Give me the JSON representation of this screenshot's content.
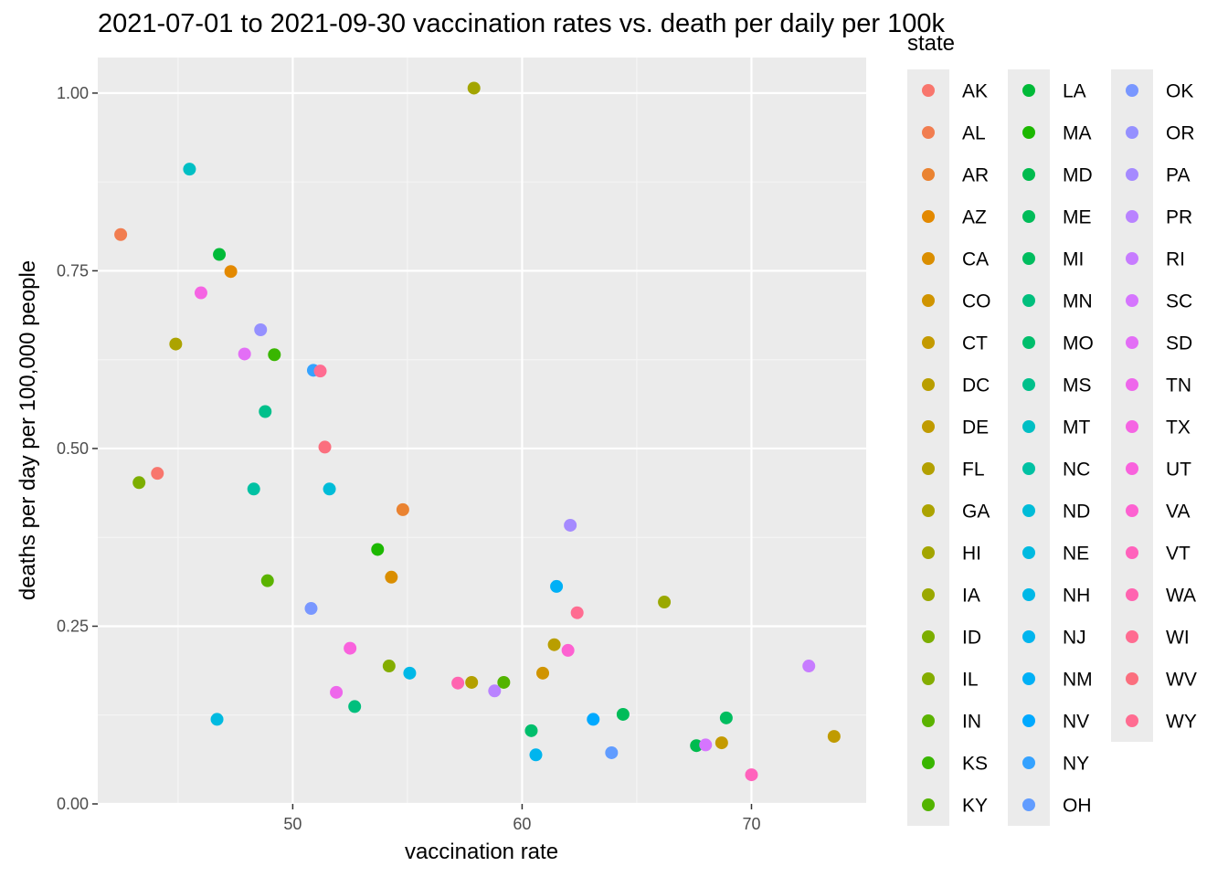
{
  "chart_data": {
    "type": "scatter",
    "title": "2021-07-01 to 2021-09-30 vaccination rates vs. death per daily per 100k",
    "xlabel": "vaccination rate",
    "ylabel": "deaths per day per 100,000 people",
    "legend_title": "state",
    "legend_position": "right",
    "grid": true,
    "xlim": [
      41.5,
      75
    ],
    "ylim": [
      0,
      1.05
    ],
    "x_ticks": [
      50,
      60,
      70
    ],
    "y_ticks": [
      "0.00",
      "0.25",
      "0.50",
      "0.75",
      "1.00"
    ],
    "legend_columns": 3,
    "points": [
      {
        "state": "AK",
        "x": 44.1,
        "y": 0.465,
        "color": "#F8766D"
      },
      {
        "state": "AL",
        "x": 42.5,
        "y": 0.801,
        "color": "#F17D50"
      },
      {
        "state": "AR",
        "x": 54.8,
        "y": 0.414,
        "color": "#EA8331"
      },
      {
        "state": "AZ",
        "x": 47.3,
        "y": 0.749,
        "color": "#E38900"
      },
      {
        "state": "CA",
        "x": 54.3,
        "y": 0.319,
        "color": "#DA8E00"
      },
      {
        "state": "CO",
        "x": 60.9,
        "y": 0.184,
        "color": "#D09400"
      },
      {
        "state": "CT",
        "x": 68.7,
        "y": 0.086,
        "color": "#C49A00"
      },
      {
        "state": "DC",
        "x": 61.4,
        "y": 0.224,
        "color": "#B99E00"
      },
      {
        "state": "DE",
        "x": 73.6,
        "y": 0.095,
        "color": "#C09B00"
      },
      {
        "state": "FL",
        "x": 57.8,
        "y": 0.171,
        "color": "#B3A000"
      },
      {
        "state": "GA",
        "x": 44.9,
        "y": 0.647,
        "color": "#ACA300"
      },
      {
        "state": "HI",
        "x": 57.9,
        "y": 1.007,
        "color": "#A3A500"
      },
      {
        "state": "IA",
        "x": 66.2,
        "y": 0.284,
        "color": "#9AA800"
      },
      {
        "state": "ID",
        "x": 43.3,
        "y": 0.452,
        "color": "#7CAE00"
      },
      {
        "state": "IL",
        "x": 54.2,
        "y": 0.194,
        "color": "#84AD00"
      },
      {
        "state": "IN",
        "x": 48.9,
        "y": 0.314,
        "color": "#5BB300"
      },
      {
        "state": "KS",
        "x": 49.2,
        "y": 0.632,
        "color": "#39B600"
      },
      {
        "state": "KY",
        "x": 59.2,
        "y": 0.171,
        "color": "#53B400"
      },
      {
        "state": "LA",
        "x": 46.8,
        "y": 0.773,
        "color": "#00BA38"
      },
      {
        "state": "MA",
        "x": 53.7,
        "y": 0.358,
        "color": "#1CB800"
      },
      {
        "state": "MD",
        "x": 67.6,
        "y": 0.082,
        "color": "#00BB4E"
      },
      {
        "state": "ME",
        "x": 64.4,
        "y": 0.126,
        "color": "#00BC59"
      },
      {
        "state": "MI",
        "x": 68.9,
        "y": 0.121,
        "color": "#00BD5F"
      },
      {
        "state": "MN",
        "x": 52.7,
        "y": 0.137,
        "color": "#00BF7D"
      },
      {
        "state": "MO",
        "x": 60.4,
        "y": 0.103,
        "color": "#00BE6C"
      },
      {
        "state": "MS",
        "x": 48.8,
        "y": 0.552,
        "color": "#00C08B"
      },
      {
        "state": "MT",
        "x": 45.5,
        "y": 0.893,
        "color": "#00BFC4"
      },
      {
        "state": "NC",
        "x": 48.3,
        "y": 0.443,
        "color": "#00C1A3"
      },
      {
        "state": "ND",
        "x": 51.6,
        "y": 0.443,
        "color": "#00BCD8"
      },
      {
        "state": "NE",
        "x": 46.7,
        "y": 0.119,
        "color": "#00BAE0"
      },
      {
        "state": "NH",
        "x": 55.1,
        "y": 0.184,
        "color": "#00B8E7"
      },
      {
        "state": "NJ",
        "x": 60.6,
        "y": 0.069,
        "color": "#00B5EE"
      },
      {
        "state": "NM",
        "x": 61.5,
        "y": 0.306,
        "color": "#00B0F6"
      },
      {
        "state": "NV",
        "x": 63.1,
        "y": 0.119,
        "color": "#00A9FF"
      },
      {
        "state": "NY",
        "x": 50.9,
        "y": 0.61,
        "color": "#35A2FF"
      },
      {
        "state": "OH",
        "x": 63.9,
        "y": 0.072,
        "color": "#619CFF"
      },
      {
        "state": "OK",
        "x": 50.8,
        "y": 0.275,
        "color": "#7997FF"
      },
      {
        "state": "OR",
        "x": 48.6,
        "y": 0.667,
        "color": "#9590FF"
      },
      {
        "state": "PA",
        "x": 62.1,
        "y": 0.392,
        "color": "#A58AFF"
      },
      {
        "state": "PR",
        "x": 58.8,
        "y": 0.159,
        "color": "#B983FF"
      },
      {
        "state": "RI",
        "x": 72.5,
        "y": 0.194,
        "color": "#C77CFF"
      },
      {
        "state": "SC",
        "x": 68.0,
        "y": 0.083,
        "color": "#D575FE"
      },
      {
        "state": "SD",
        "x": 47.9,
        "y": 0.633,
        "color": "#E36EF6"
      },
      {
        "state": "TN",
        "x": 51.9,
        "y": 0.157,
        "color": "#EE67EB"
      },
      {
        "state": "TX",
        "x": 46.0,
        "y": 0.719,
        "color": "#F564E3"
      },
      {
        "state": "UT",
        "x": 52.5,
        "y": 0.219,
        "color": "#F962DD"
      },
      {
        "state": "VA",
        "x": 62.0,
        "y": 0.216,
        "color": "#FD61D1"
      },
      {
        "state": "VT",
        "x": 70.0,
        "y": 0.041,
        "color": "#FF62BC"
      },
      {
        "state": "WA",
        "x": 57.2,
        "y": 0.17,
        "color": "#FF64B0"
      },
      {
        "state": "WI",
        "x": 62.4,
        "y": 0.269,
        "color": "#FF6C91"
      },
      {
        "state": "WV",
        "x": 51.4,
        "y": 0.502,
        "color": "#FB6F7E"
      },
      {
        "state": "WY",
        "x": 51.2,
        "y": 0.609,
        "color": "#FF6C91"
      }
    ]
  }
}
